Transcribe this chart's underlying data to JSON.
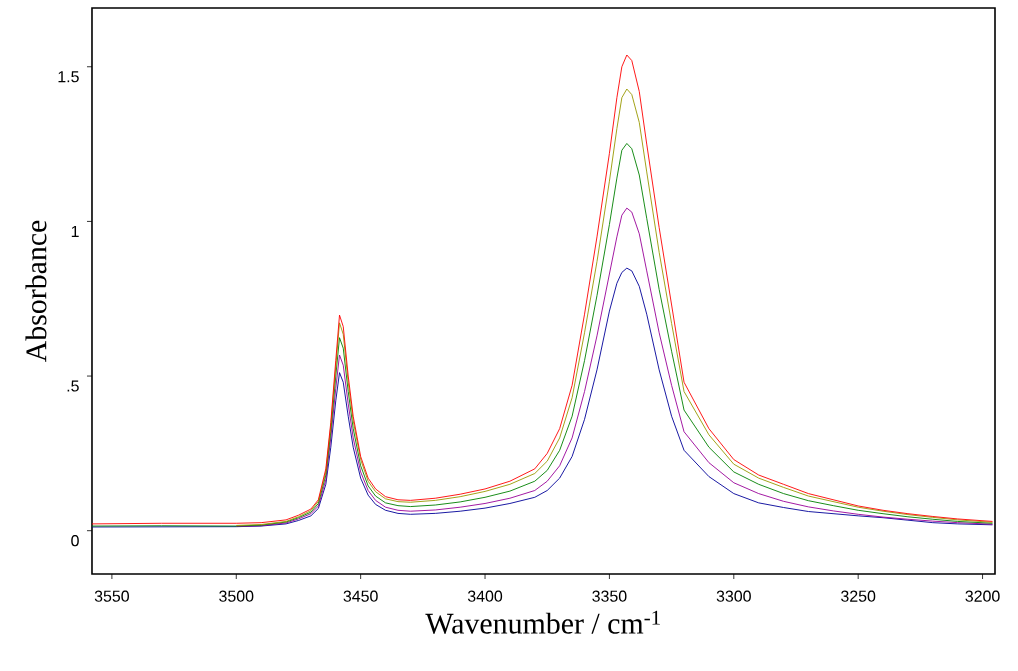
{
  "chart_data": {
    "type": "line",
    "xlabel": "Wavenumber / cm$^{-1}$",
    "ylabel": "Absorbance",
    "xlim": [
      3558,
      3195
    ],
    "ylim": [
      -0.14,
      1.69
    ],
    "xticks": [
      3550,
      3500,
      3450,
      3400,
      3350,
      3300,
      3250,
      3200
    ],
    "yticks": [
      0,
      {
        "value": 0.5,
        "label": ".5"
      },
      1,
      1.5
    ],
    "x": [
      3558,
      3530,
      3500,
      3490,
      3480,
      3475,
      3470,
      3467,
      3464,
      3462,
      3460,
      3458.5,
      3457,
      3455,
      3453,
      3450,
      3447,
      3444,
      3440,
      3435,
      3430,
      3420,
      3410,
      3400,
      3390,
      3380,
      3375,
      3370,
      3365,
      3360,
      3355,
      3350,
      3347,
      3345,
      3343,
      3341,
      3338,
      3335,
      3330,
      3325,
      3320,
      3310,
      3300,
      3290,
      3280,
      3270,
      3260,
      3250,
      3240,
      3230,
      3220,
      3210,
      3196
    ],
    "series": [
      {
        "color": "#000099",
        "values": [
          0.012,
          null,
          0.013,
          0.015,
          0.022,
          0.033,
          0.048,
          0.072,
          0.15,
          0.27,
          0.42,
          0.511,
          0.48,
          0.37,
          0.27,
          0.17,
          0.115,
          0.085,
          0.066,
          0.056,
          0.053,
          0.056,
          0.063,
          0.073,
          0.088,
          0.108,
          0.13,
          0.17,
          0.24,
          0.36,
          0.52,
          0.71,
          0.8,
          0.835,
          0.849,
          0.84,
          0.79,
          0.7,
          0.52,
          0.37,
          0.26,
          0.175,
          0.12,
          0.09,
          0.075,
          0.062,
          0.055,
          0.048,
          0.042,
          0.034,
          0.026,
          0.022,
          0.019
        ]
      },
      {
        "color": "#990099",
        "values": [
          null,
          null,
          0.014,
          0.016,
          0.025,
          0.038,
          0.055,
          0.08,
          0.165,
          0.3,
          0.46,
          0.568,
          0.535,
          0.41,
          0.3,
          0.19,
          0.13,
          0.098,
          0.076,
          0.066,
          0.063,
          0.067,
          0.076,
          0.088,
          0.105,
          0.13,
          0.16,
          0.21,
          0.3,
          0.45,
          0.63,
          0.83,
          0.95,
          1.02,
          1.043,
          1.03,
          0.96,
          0.84,
          0.64,
          0.47,
          0.32,
          0.22,
          0.155,
          0.12,
          0.095,
          0.077,
          0.064,
          0.053,
          0.044,
          0.037,
          0.031,
          0.026,
          0.021
        ]
      },
      {
        "color": "#008000",
        "values": [
          0.015,
          0.016,
          0.015,
          0.018,
          0.028,
          0.042,
          0.06,
          0.088,
          0.18,
          0.32,
          0.5,
          0.624,
          0.59,
          0.45,
          0.33,
          0.21,
          0.145,
          0.112,
          0.09,
          0.081,
          0.078,
          0.083,
          0.093,
          0.108,
          0.128,
          0.16,
          0.195,
          0.26,
          0.37,
          0.55,
          0.76,
          0.99,
          1.14,
          1.23,
          1.252,
          1.235,
          1.15,
          1.01,
          0.78,
          0.58,
          0.39,
          0.27,
          0.19,
          0.15,
          0.12,
          0.097,
          0.081,
          0.066,
          0.055,
          0.045,
          0.037,
          0.03,
          0.024
        ]
      },
      {
        "color": "#999900",
        "values": [
          null,
          null,
          0.017,
          0.02,
          0.03,
          0.045,
          0.065,
          0.095,
          0.19,
          0.34,
          0.53,
          0.672,
          0.635,
          0.48,
          0.355,
          0.23,
          0.16,
          0.126,
          0.103,
          0.094,
          0.092,
          0.098,
          0.11,
          0.127,
          0.15,
          0.185,
          0.225,
          0.3,
          0.43,
          0.64,
          0.87,
          1.13,
          1.3,
          1.4,
          1.428,
          1.41,
          1.32,
          1.16,
          0.9,
          0.67,
          0.45,
          0.31,
          0.215,
          0.17,
          0.14,
          0.112,
          0.094,
          0.076,
          0.063,
          0.052,
          0.043,
          0.035,
          0.027
        ]
      },
      {
        "color": "#ff0000",
        "values": [
          0.022,
          0.024,
          0.024,
          0.026,
          0.035,
          0.05,
          0.07,
          0.1,
          0.2,
          0.35,
          0.55,
          0.697,
          0.66,
          0.5,
          0.37,
          0.24,
          0.17,
          0.135,
          0.11,
          0.1,
          0.098,
          0.105,
          0.118,
          0.135,
          0.16,
          0.2,
          0.25,
          0.33,
          0.47,
          0.7,
          0.95,
          1.22,
          1.4,
          1.5,
          1.538,
          1.52,
          1.42,
          1.25,
          0.98,
          0.73,
          0.48,
          0.33,
          0.23,
          0.18,
          0.15,
          0.12,
          0.1,
          0.08,
          0.066,
          0.055,
          0.046,
          0.038,
          0.03
        ]
      }
    ]
  }
}
